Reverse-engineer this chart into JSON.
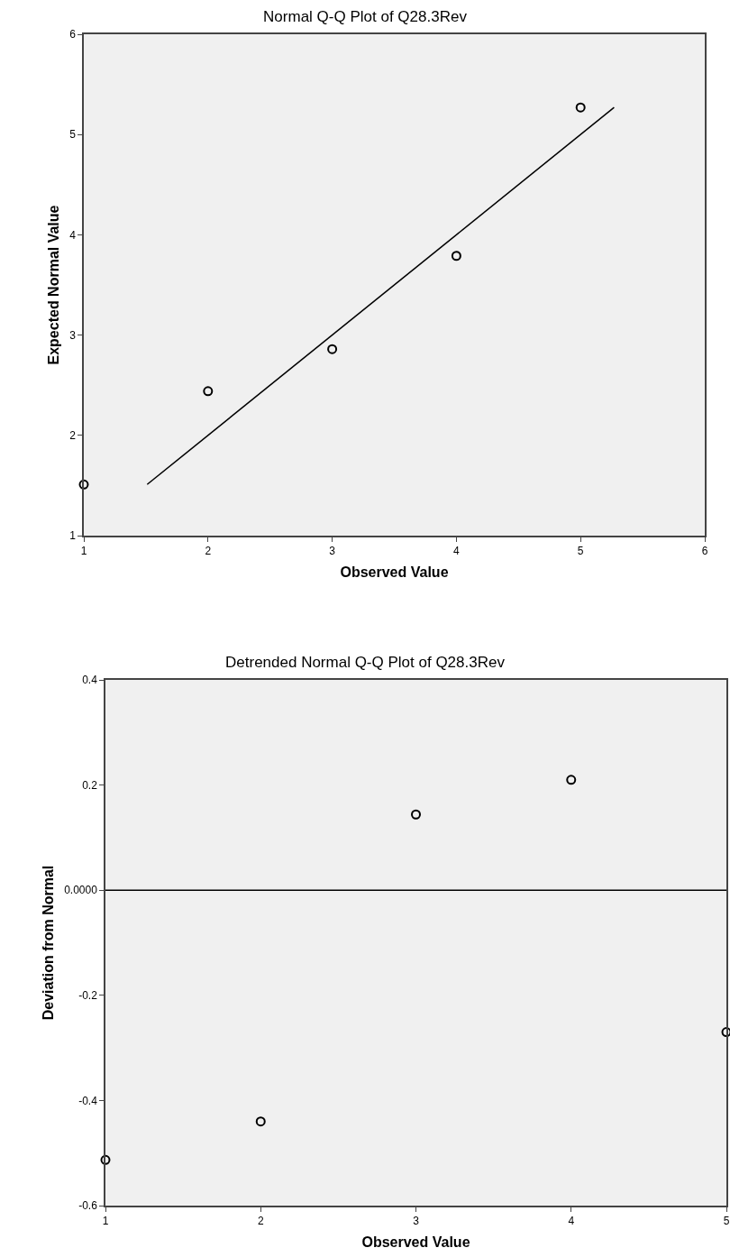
{
  "chart_data": [
    {
      "type": "scatter",
      "title": "Normal Q-Q Plot of Q28.3Rev",
      "xlabel": "Observed Value",
      "ylabel": "Expected Normal Value",
      "xlim": [
        1,
        6
      ],
      "xticks": [
        1,
        2,
        3,
        4,
        5,
        6
      ],
      "ylim": [
        1,
        6
      ],
      "yticks": [
        1,
        2,
        3,
        4,
        5,
        6
      ],
      "grid": false,
      "marker": "circle",
      "series": [
        {
          "color": "#000000",
          "x": [
            1,
            2,
            3,
            4,
            5
          ],
          "values": [
            1.51,
            2.44,
            2.86,
            3.79,
            5.27
          ]
        },
        {
          "type": "line",
          "color": "#000000",
          "line_style": "solid",
          "marker": "none",
          "x": [
            1.51,
            5.27
          ],
          "values": [
            1.51,
            5.27
          ]
        }
      ]
    },
    {
      "type": "scatter",
      "title": "Detrended Normal Q-Q Plot of Q28.3Rev",
      "xlabel": "Observed Value",
      "ylabel": "Deviation from Normal",
      "xlim": [
        1,
        5
      ],
      "xticks": [
        1,
        2,
        3,
        4,
        5
      ],
      "ylim": [
        -0.6,
        0.4
      ],
      "yticks": [
        -0.6,
        -0.4,
        -0.2,
        {
          "value": 0,
          "label": "0.0000"
        },
        0.2,
        0.4
      ],
      "grid": false,
      "marker": "circle",
      "ref_lines": [
        {
          "axis": "y",
          "value": 0,
          "color": "#000000"
        }
      ],
      "series": [
        {
          "color": "#000000",
          "x": [
            1,
            2,
            3,
            4,
            5
          ],
          "values": [
            -0.513,
            -0.44,
            0.144,
            0.21,
            -0.27
          ]
        }
      ]
    }
  ]
}
